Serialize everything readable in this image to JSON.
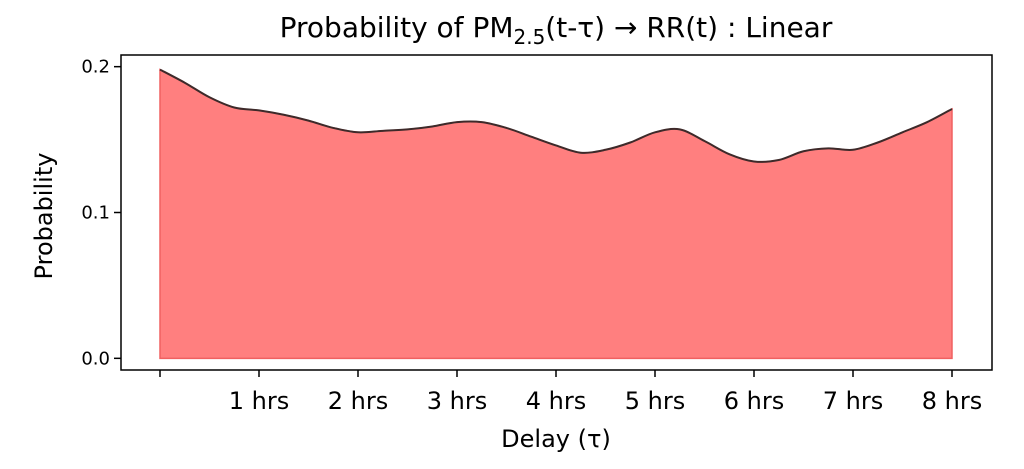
{
  "chart_data": {
    "type": "area",
    "title": {
      "main": "Probability of PM",
      "sub": "2.5",
      "rest": "(t-τ) → RR(t) : Linear"
    },
    "xlabel": "Delay (τ)",
    "ylabel": "Probability",
    "xlim": [
      0,
      8
    ],
    "ylim": [
      -0.008,
      0.208
    ],
    "x_ticks": [
      0,
      1,
      2,
      3,
      4,
      5,
      6,
      7,
      8
    ],
    "x_tick_labels": [
      "",
      "1 hrs",
      "2 hrs",
      "3 hrs",
      "4 hrs",
      "5 hrs",
      "6 hrs",
      "7 hrs",
      "8 hrs"
    ],
    "y_ticks": [
      0.0,
      0.1,
      0.2
    ],
    "y_tick_labels": [
      "0.0",
      "0.1",
      "0.2"
    ],
    "series": [
      {
        "x": [
          0,
          0.25,
          0.5,
          0.75,
          1,
          1.25,
          1.5,
          1.75,
          2,
          2.25,
          2.5,
          2.75,
          3,
          3.25,
          3.5,
          3.75,
          4,
          4.25,
          4.5,
          4.75,
          5,
          5.25,
          5.5,
          5.75,
          6,
          6.25,
          6.5,
          6.75,
          7,
          7.25,
          7.5,
          7.75,
          8
        ],
        "y": [
          0.198,
          0.189,
          0.179,
          0.172,
          0.17,
          0.167,
          0.163,
          0.158,
          0.155,
          0.156,
          0.157,
          0.159,
          0.162,
          0.162,
          0.158,
          0.152,
          0.146,
          0.141,
          0.143,
          0.148,
          0.155,
          0.157,
          0.149,
          0.14,
          0.135,
          0.136,
          0.142,
          0.144,
          0.143,
          0.148,
          0.155,
          0.162,
          0.171
        ]
      }
    ],
    "fill_color": "#ff7f7f",
    "edge_color": "#f06060",
    "line_color": "#3d2a2a",
    "grid": false
  }
}
